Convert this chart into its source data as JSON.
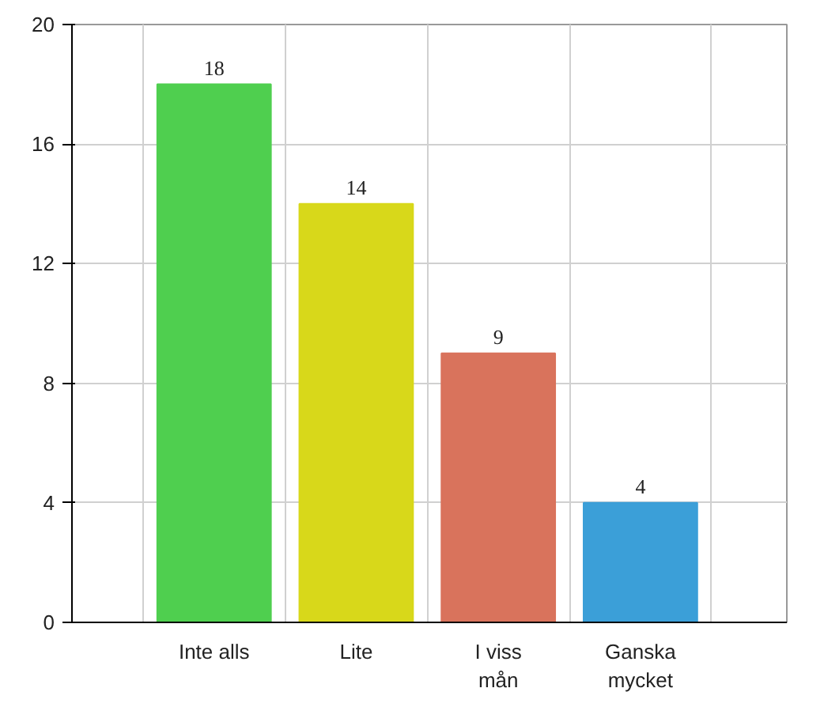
{
  "chart_data": {
    "type": "bar",
    "categories": [
      "Inte alls",
      "Lite",
      "I viss\nmån",
      "Ganska\nmycket"
    ],
    "values": [
      18,
      14,
      9,
      4
    ],
    "colors": [
      "#4fcf4f",
      "#d8d81a",
      "#d9735c",
      "#3b9fd8"
    ],
    "ylim": [
      0,
      20
    ],
    "yticks": [
      0,
      4,
      8,
      12,
      16,
      20
    ],
    "grid": true,
    "data_labels": true
  }
}
